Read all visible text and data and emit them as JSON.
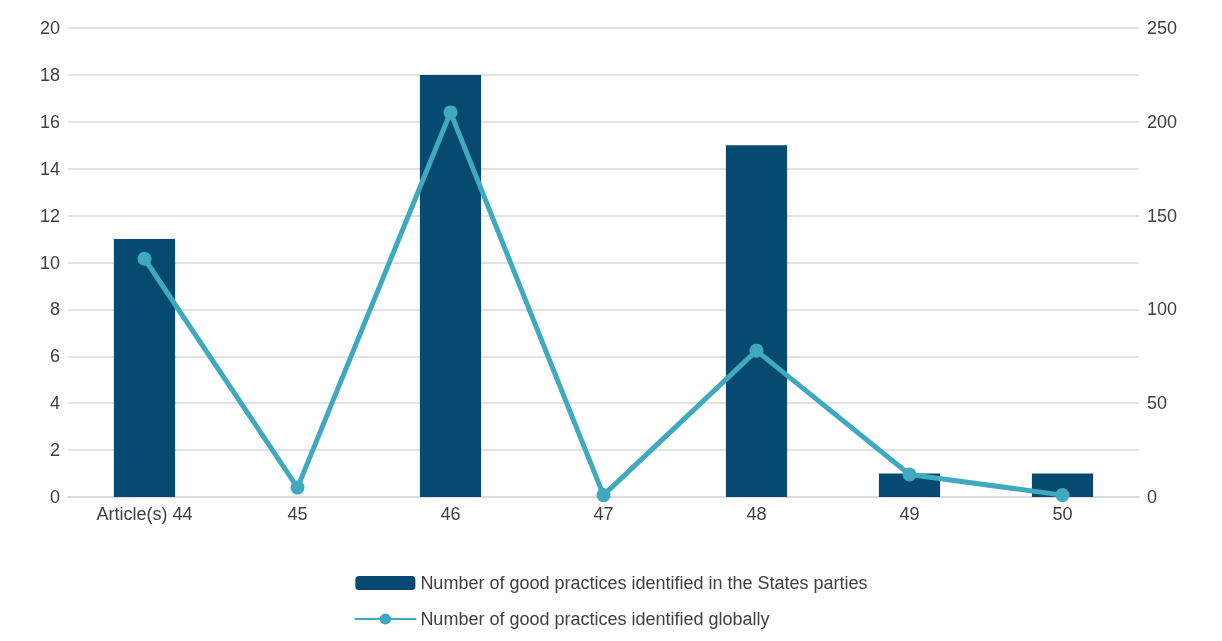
{
  "chart_data": {
    "type": "bar",
    "categories": [
      "Article(s) 44",
      "45",
      "46",
      "47",
      "48",
      "49",
      "50"
    ],
    "series": [
      {
        "name": "Number of good practices identified in the States parties",
        "color": "#064a72",
        "values": [
          11,
          0,
          18,
          0,
          15,
          1,
          1
        ]
      },
      {
        "name": "Number of good practices identified globally",
        "type": "line",
        "axis": "y2",
        "color": "#3fa9bf",
        "values": [
          127,
          5,
          205,
          1,
          78,
          12,
          1
        ]
      }
    ],
    "ylim": [
      0,
      20
    ],
    "yticks": [
      0,
      2,
      4,
      6,
      8,
      10,
      12,
      14,
      16,
      18,
      20
    ],
    "y2lim": [
      0,
      250
    ],
    "y2ticks": [
      0,
      50,
      100,
      150,
      200,
      250
    ],
    "grid": "y",
    "legend": "bottom",
    "marker": "circle",
    "line_style": "solid"
  }
}
